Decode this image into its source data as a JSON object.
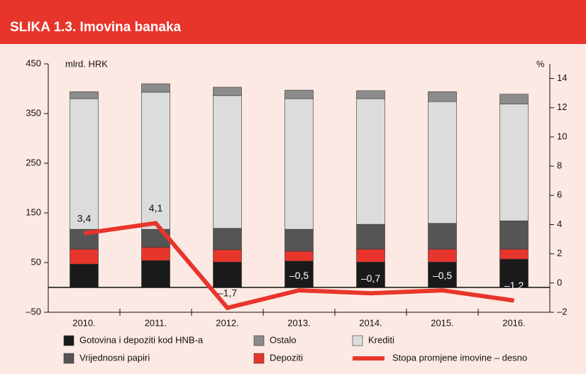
{
  "chart_data": {
    "type": "bar",
    "stacked": true,
    "title": "SLIKA 1.3. Imovina banaka",
    "ylabel": "mlrd. HRK",
    "y2label": "%",
    "categories": [
      "2010.",
      "2011.",
      "2012.",
      "2013.",
      "2014.",
      "2015.",
      "2016."
    ],
    "series": [
      {
        "name": "Gotovina i depoziti kod HNB-a",
        "color": "#1a1a1a",
        "values": [
          47,
          54,
          51,
          53,
          51,
          51,
          57
        ]
      },
      {
        "name": "Depoziti",
        "color": "#e8352b",
        "values": [
          30,
          27,
          25,
          20,
          26,
          26,
          20
        ]
      },
      {
        "name": "Vrijednosni papiri",
        "color": "#555555",
        "values": [
          40,
          36,
          43,
          44,
          50,
          52,
          57
        ]
      },
      {
        "name": "Krediti",
        "color": "#dcdcdc",
        "values": [
          263,
          276,
          267,
          263,
          253,
          245,
          235
        ]
      },
      {
        "name": "Ostalo",
        "color": "#8c8c8c",
        "values": [
          14,
          17,
          17,
          17,
          16,
          20,
          20
        ]
      },
      {
        "name": "Stopa promjene imovine – desno",
        "type": "line",
        "axis": "y2",
        "color": "#e8352b",
        "values": [
          3.4,
          4.1,
          -1.7,
          -0.5,
          -0.7,
          -0.5,
          -1.2
        ],
        "value_labels": [
          "3,4",
          "4,1",
          "–1,7",
          "–0,5",
          "–0,7",
          "–0,5",
          "–1,2"
        ]
      }
    ],
    "ylim": [
      -50,
      450
    ],
    "yticks": [
      {
        "value": -50,
        "label": "–50"
      },
      50,
      150,
      250,
      350,
      450
    ],
    "y2lim": [
      -2,
      15
    ],
    "y2ticks": [
      {
        "value": -2,
        "label": "–2"
      },
      0,
      2,
      4,
      6,
      8,
      10,
      12,
      14
    ]
  }
}
